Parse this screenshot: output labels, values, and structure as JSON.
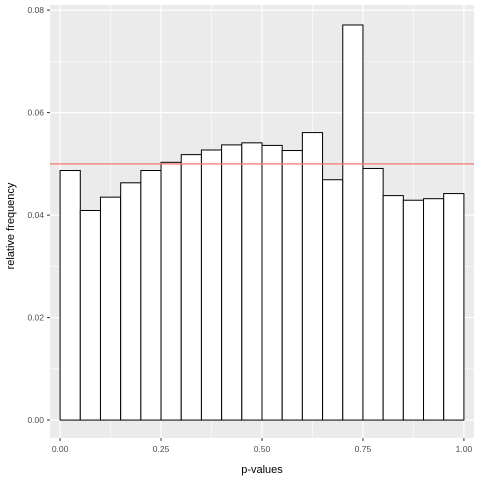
{
  "chart_data": {
    "type": "bar",
    "title": "",
    "xlabel": "p-values",
    "ylabel": "relative frequency",
    "xlim": [
      -0.025,
      1.025
    ],
    "ylim": [
      -0.0035,
      0.081
    ],
    "x_ticks": [
      0.0,
      0.25,
      0.5,
      0.75,
      1.0
    ],
    "x_tick_labels": [
      "0.00",
      "0.25",
      "0.50",
      "0.75",
      "1.00"
    ],
    "y_ticks": [
      0.0,
      0.02,
      0.04,
      0.06,
      0.08
    ],
    "y_tick_labels": [
      "0.00",
      "0.02",
      "0.04",
      "0.06",
      "0.08"
    ],
    "grid": true,
    "bin_width": 0.05,
    "bins": [
      {
        "x0": 0.0,
        "x1": 0.05,
        "value": 0.0487
      },
      {
        "x0": 0.05,
        "x1": 0.1,
        "value": 0.0409
      },
      {
        "x0": 0.1,
        "x1": 0.15,
        "value": 0.0435
      },
      {
        "x0": 0.15,
        "x1": 0.2,
        "value": 0.0463
      },
      {
        "x0": 0.2,
        "x1": 0.25,
        "value": 0.0487
      },
      {
        "x0": 0.25,
        "x1": 0.3,
        "value": 0.0503
      },
      {
        "x0": 0.3,
        "x1": 0.35,
        "value": 0.0518
      },
      {
        "x0": 0.35,
        "x1": 0.4,
        "value": 0.0527
      },
      {
        "x0": 0.4,
        "x1": 0.45,
        "value": 0.0537
      },
      {
        "x0": 0.45,
        "x1": 0.5,
        "value": 0.0541
      },
      {
        "x0": 0.5,
        "x1": 0.55,
        "value": 0.0536
      },
      {
        "x0": 0.55,
        "x1": 0.6,
        "value": 0.0526
      },
      {
        "x0": 0.6,
        "x1": 0.65,
        "value": 0.0561
      },
      {
        "x0": 0.65,
        "x1": 0.7,
        "value": 0.0469
      },
      {
        "x0": 0.7,
        "x1": 0.75,
        "value": 0.0771
      },
      {
        "x0": 0.75,
        "x1": 0.8,
        "value": 0.0491
      },
      {
        "x0": 0.8,
        "x1": 0.85,
        "value": 0.0438
      },
      {
        "x0": 0.85,
        "x1": 0.9,
        "value": 0.0429
      },
      {
        "x0": 0.9,
        "x1": 0.95,
        "value": 0.0432
      },
      {
        "x0": 0.95,
        "x1": 1.0,
        "value": 0.0442
      }
    ],
    "reference_line": {
      "y": 0.05,
      "color": "#f8766d"
    },
    "colors": {
      "panel_background": "#ebebeb",
      "grid_major": "#ffffff",
      "bar_fill": "#ffffff",
      "bar_stroke": "#000000"
    }
  }
}
